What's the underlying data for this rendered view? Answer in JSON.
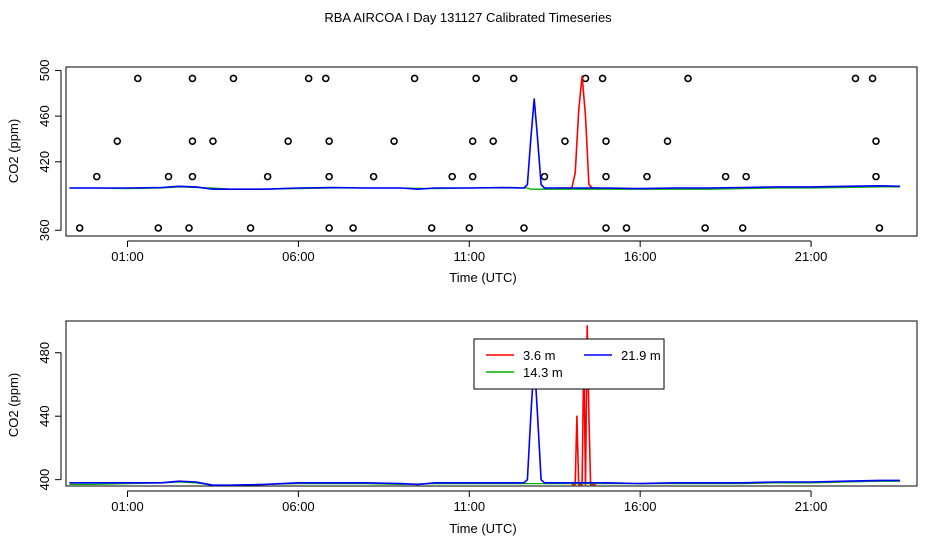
{
  "title": "RBA AIRCOA I  Day 131127  Calibrated Timeseries",
  "colors": {
    "red": "#ff0000",
    "green": "#00b000",
    "blue": "#0000ff",
    "axis": "#000000"
  },
  "chart_data": [
    {
      "type": "scatter",
      "title": "",
      "xlabel": "Time (UTC)",
      "ylabel": "CO2 (ppm)",
      "xlim": [
        -0.8,
        24.1
      ],
      "ylim": [
        355,
        503
      ],
      "x_ticks": [
        1,
        6,
        11,
        16,
        21
      ],
      "x_tick_labels": [
        "01:00",
        "06:00",
        "11:00",
        "16:00",
        "21:00"
      ],
      "y_ticks": [
        360,
        420,
        460,
        500
      ],
      "y_tick_labels": [
        "360",
        "420",
        "460",
        "500"
      ],
      "grid": false,
      "series": [
        {
          "color": "red",
          "points": [
            [
              13.6,
              397
            ],
            [
              13.8,
              397
            ],
            [
              14.0,
              397
            ],
            [
              14.1,
              410
            ],
            [
              14.2,
              465
            ],
            [
              14.3,
              495
            ],
            [
              14.4,
              460
            ],
            [
              14.5,
              400
            ],
            [
              14.6,
              397
            ],
            [
              14.8,
              397
            ]
          ]
        },
        {
          "color": "green",
          "points": [
            [
              -1.0,
              397
            ],
            [
              0,
              397
            ],
            [
              1,
              396.5
            ],
            [
              2,
              397
            ],
            [
              2.5,
              398
            ],
            [
              3,
              397.5
            ],
            [
              3.5,
              397
            ],
            [
              4,
              396
            ],
            [
              5,
              396
            ],
            [
              6,
              396.5
            ],
            [
              7,
              397
            ],
            [
              8,
              397
            ],
            [
              9,
              397
            ],
            [
              10,
              396.5
            ],
            [
              11,
              397
            ],
            [
              12,
              397
            ],
            [
              12.6,
              397
            ],
            [
              12.7,
              397
            ],
            [
              12.8,
              396
            ],
            [
              13,
              396
            ],
            [
              14,
              396
            ],
            [
              15,
              396
            ],
            [
              16,
              396
            ],
            [
              17,
              396
            ],
            [
              18,
              396
            ],
            [
              19,
              396.5
            ],
            [
              20,
              397
            ],
            [
              21,
              397
            ],
            [
              22,
              397.5
            ],
            [
              23,
              398
            ],
            [
              23.6,
              398
            ]
          ]
        },
        {
          "color": "blue",
          "points": [
            [
              -1.0,
              397
            ],
            [
              0,
              397
            ],
            [
              1,
              397
            ],
            [
              2,
              397.5
            ],
            [
              2.5,
              398.5
            ],
            [
              3,
              398
            ],
            [
              3.5,
              396
            ],
            [
              4,
              396
            ],
            [
              5,
              396
            ],
            [
              6,
              397
            ],
            [
              7,
              397.5
            ],
            [
              8,
              397
            ],
            [
              9,
              397
            ],
            [
              9.5,
              396
            ],
            [
              10,
              397
            ],
            [
              11,
              397
            ],
            [
              12,
              397.5
            ],
            [
              12.6,
              397
            ],
            [
              12.7,
              400
            ],
            [
              12.8,
              440
            ],
            [
              12.9,
              475
            ],
            [
              13.0,
              440
            ],
            [
              13.1,
              400
            ],
            [
              13.2,
              397
            ],
            [
              14,
              397
            ],
            [
              15,
              397
            ],
            [
              16,
              396.5
            ],
            [
              17,
              397
            ],
            [
              18,
              397
            ],
            [
              19,
              397.5
            ],
            [
              20,
              398
            ],
            [
              21,
              398
            ],
            [
              22,
              398.5
            ],
            [
              23,
              399
            ],
            [
              23.6,
              398.5
            ]
          ]
        }
      ],
      "markers": [
        [
          -0.4,
          362
        ],
        [
          0.1,
          407
        ],
        [
          0.7,
          438
        ],
        [
          1.3,
          493
        ],
        [
          1.9,
          362
        ],
        [
          2.2,
          407
        ],
        [
          2.8,
          362
        ],
        [
          2.9,
          407
        ],
        [
          2.9,
          438
        ],
        [
          2.9,
          493
        ],
        [
          3.5,
          438
        ],
        [
          4.1,
          493
        ],
        [
          4.6,
          362
        ],
        [
          5.1,
          407
        ],
        [
          5.7,
          438
        ],
        [
          6.3,
          493
        ],
        [
          6.8,
          493
        ],
        [
          6.9,
          438
        ],
        [
          6.9,
          407
        ],
        [
          6.9,
          362
        ],
        [
          7.6,
          362
        ],
        [
          8.2,
          407
        ],
        [
          8.8,
          438
        ],
        [
          9.4,
          493
        ],
        [
          9.9,
          362
        ],
        [
          10.5,
          407
        ],
        [
          11.0,
          362
        ],
        [
          11.1,
          407
        ],
        [
          11.1,
          438
        ],
        [
          11.2,
          493
        ],
        [
          11.7,
          438
        ],
        [
          12.3,
          493
        ],
        [
          12.6,
          362
        ],
        [
          13.2,
          407
        ],
        [
          13.8,
          438
        ],
        [
          14.4,
          493
        ],
        [
          14.9,
          493
        ],
        [
          15.0,
          438
        ],
        [
          15.0,
          407
        ],
        [
          15.0,
          362
        ],
        [
          15.6,
          362
        ],
        [
          16.2,
          407
        ],
        [
          16.8,
          438
        ],
        [
          17.4,
          493
        ],
        [
          17.9,
          362
        ],
        [
          18.5,
          407
        ],
        [
          19.0,
          362
        ],
        [
          19.1,
          407
        ],
        [
          22.3,
          493
        ],
        [
          22.8,
          493
        ],
        [
          22.9,
          438
        ],
        [
          22.9,
          407
        ],
        [
          23.0,
          362
        ]
      ]
    },
    {
      "type": "line",
      "title": "",
      "xlabel": "Time (UTC)",
      "ylabel": "CO2 (ppm)",
      "xlim": [
        -0.8,
        24.1
      ],
      "ylim": [
        396,
        500
      ],
      "x_ticks": [
        1,
        6,
        11,
        16,
        21
      ],
      "x_tick_labels": [
        "01:00",
        "06:00",
        "11:00",
        "16:00",
        "21:00"
      ],
      "y_ticks": [
        400,
        440,
        480
      ],
      "y_tick_labels": [
        "400",
        "440",
        "480"
      ],
      "grid": false,
      "legend": {
        "position": "top-center",
        "entries": [
          {
            "label": "3.6 m",
            "color": "red"
          },
          {
            "label": "14.3 m",
            "color": "green"
          },
          {
            "label": "21.9 m",
            "color": "blue"
          }
        ]
      },
      "series": [
        {
          "name": "3.6 m",
          "color": "red",
          "points": [
            [
              14.0,
              397
            ],
            [
              14.1,
              397
            ],
            [
              14.15,
              440
            ],
            [
              14.2,
              397
            ],
            [
              14.3,
              397
            ],
            [
              14.35,
              480
            ],
            [
              14.4,
              397
            ],
            [
              14.45,
              497
            ],
            [
              14.5,
              440
            ],
            [
              14.55,
              397
            ],
            [
              14.7,
              397
            ]
          ]
        },
        {
          "name": "14.3 m",
          "color": "green",
          "points": [
            [
              -1.0,
              397
            ],
            [
              0,
              397
            ],
            [
              1,
              397.5
            ],
            [
              2,
              398
            ],
            [
              2.5,
              398.5
            ],
            [
              3,
              398
            ],
            [
              3.5,
              396.5
            ],
            [
              4,
              396.5
            ],
            [
              5,
              397
            ],
            [
              6,
              397.5
            ],
            [
              7,
              397.5
            ],
            [
              8,
              397.5
            ],
            [
              9,
              397
            ],
            [
              10,
              397.5
            ],
            [
              11,
              397.5
            ],
            [
              12,
              397.5
            ],
            [
              12.7,
              397.5
            ],
            [
              13.2,
              397.5
            ],
            [
              14,
              397.5
            ],
            [
              15,
              397.5
            ],
            [
              16,
              397.5
            ],
            [
              17,
              397.5
            ],
            [
              18,
              397.5
            ],
            [
              19,
              397.5
            ],
            [
              20,
              398
            ],
            [
              21,
              398
            ],
            [
              22,
              398.5
            ],
            [
              23,
              399
            ],
            [
              23.6,
              399
            ]
          ]
        },
        {
          "name": "21.9 m",
          "color": "blue",
          "points": [
            [
              -1.0,
              398
            ],
            [
              0,
              398
            ],
            [
              1,
              398
            ],
            [
              2,
              398
            ],
            [
              2.5,
              399
            ],
            [
              3,
              398.5
            ],
            [
              3.5,
              396.5
            ],
            [
              4,
              396.5
            ],
            [
              5,
              397
            ],
            [
              6,
              398
            ],
            [
              7,
              398
            ],
            [
              8,
              398
            ],
            [
              9,
              397.5
            ],
            [
              9.5,
              397
            ],
            [
              10,
              398
            ],
            [
              11,
              398
            ],
            [
              12,
              398
            ],
            [
              12.6,
              398
            ],
            [
              12.7,
              400
            ],
            [
              12.8,
              440
            ],
            [
              12.9,
              476
            ],
            [
              13.0,
              440
            ],
            [
              13.1,
              400
            ],
            [
              13.2,
              398
            ],
            [
              14,
              398
            ],
            [
              15,
              398
            ],
            [
              16,
              397.5
            ],
            [
              17,
              398
            ],
            [
              18,
              398
            ],
            [
              19,
              398
            ],
            [
              20,
              398.5
            ],
            [
              21,
              398.5
            ],
            [
              22,
              399
            ],
            [
              23,
              399.5
            ],
            [
              23.6,
              399.5
            ]
          ]
        }
      ]
    }
  ]
}
